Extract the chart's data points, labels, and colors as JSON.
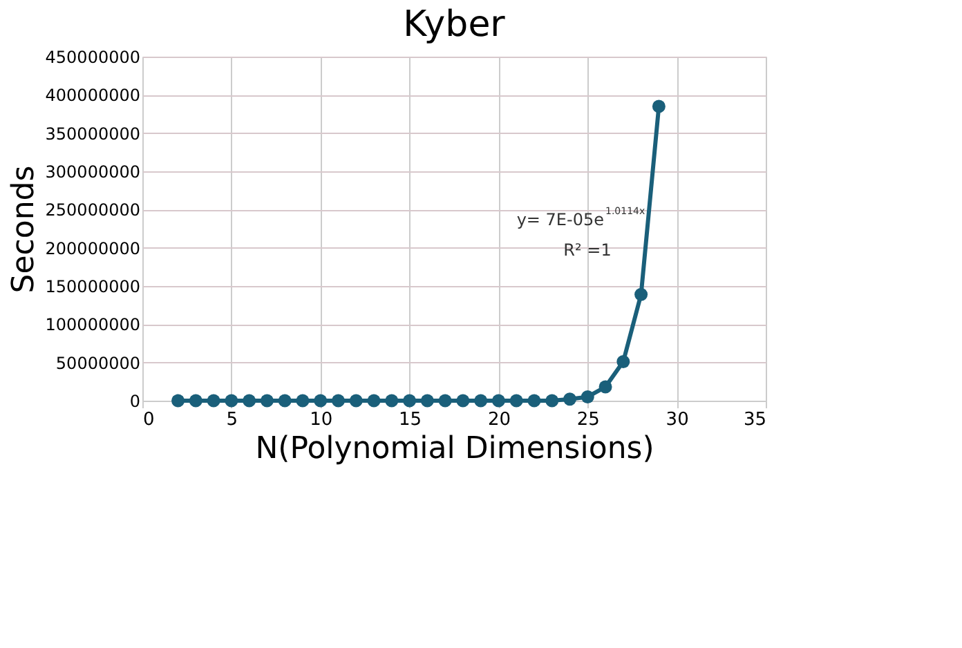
{
  "chart_data": {
    "type": "line",
    "title": "Kyber",
    "xlabel": "N(Polynomial Dimensions)",
    "ylabel": "Seconds",
    "xlim": [
      0,
      35
    ],
    "xticks": [
      0,
      5,
      10,
      15,
      20,
      25,
      30,
      35
    ],
    "ylim": [
      0,
      450000000
    ],
    "yticks": [
      0,
      50000000,
      100000000,
      150000000,
      200000000,
      250000000,
      300000000,
      350000000,
      400000000,
      450000000
    ],
    "grid": true,
    "series": [
      {
        "color": "#1a5f7a",
        "marker": "circle",
        "line_style": "solid",
        "x": [
          2,
          3,
          4,
          5,
          6,
          7,
          8,
          9,
          10,
          11,
          12,
          13,
          14,
          15,
          16,
          17,
          18,
          19,
          20,
          21,
          22,
          23,
          24,
          25,
          26,
          27,
          28,
          29
        ],
        "values": [
          0,
          0,
          0,
          0,
          0,
          0,
          0,
          0,
          0,
          0,
          0,
          0,
          0,
          0,
          0,
          0,
          0,
          0,
          0,
          0,
          0,
          0,
          2000000,
          5000000,
          18000000,
          51000000,
          139000000,
          385000000
        ]
      }
    ],
    "annotations": [
      "y= 7E-05e$^{1.0114x}$",
      "R² =1"
    ]
  }
}
